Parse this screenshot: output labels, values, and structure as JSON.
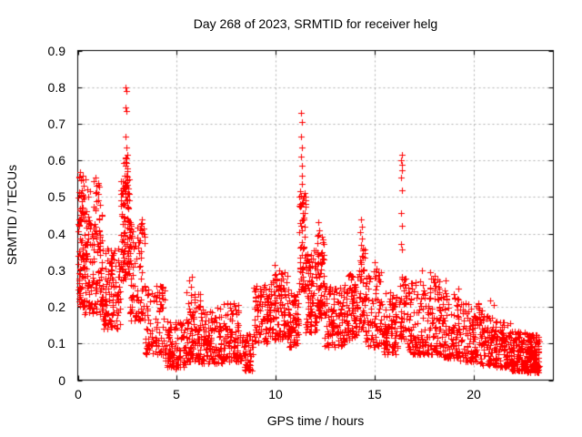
{
  "chart_data": {
    "type": "scatter",
    "title": "Day 268 of 2023, SRMTID for receiver helg",
    "xlabel": "GPS time / hours",
    "ylabel": "SRMTID / TECUs",
    "xlim": [
      0,
      24
    ],
    "ylim": [
      0,
      0.9
    ],
    "x_ticks": [
      0,
      5,
      10,
      15,
      20
    ],
    "x_tick_labels": [
      "0",
      "5",
      "10",
      "15",
      "20"
    ],
    "y_ticks": [
      0,
      0.1,
      0.2,
      0.3,
      0.4,
      0.5,
      0.6,
      0.7,
      0.8,
      0.9
    ],
    "y_tick_labels": [
      "0",
      "0.1",
      "0.2",
      "0.3",
      "0.4",
      "0.5",
      "0.6",
      "0.7",
      "0.8",
      "0.9"
    ],
    "grid": true,
    "legend": "none",
    "marker": {
      "shape": "plus",
      "color": "#ff0000",
      "size": 7
    },
    "grid_color": "#b0b0b0",
    "axis_color": "#000000",
    "background_color": "#ffffff",
    "series_name": "SRMTID",
    "seed": 268,
    "points": [
      [
        0.07,
        0.555
      ],
      [
        0.12,
        0.568
      ],
      [
        0.18,
        0.545
      ],
      [
        0.25,
        0.558
      ],
      [
        0.28,
        0.53
      ],
      [
        0.33,
        0.5
      ],
      [
        0.55,
        0.5
      ],
      [
        0.62,
        0.515
      ],
      [
        0.88,
        0.552
      ],
      [
        0.95,
        0.53
      ],
      [
        1.02,
        0.508
      ],
      [
        2.42,
        0.8
      ],
      [
        2.45,
        0.79
      ],
      [
        2.43,
        0.745
      ],
      [
        2.46,
        0.735
      ],
      [
        2.42,
        0.665
      ],
      [
        2.44,
        0.635
      ],
      [
        2.43,
        0.605
      ],
      [
        2.46,
        0.592
      ],
      [
        2.4,
        0.585
      ],
      [
        2.48,
        0.57
      ],
      [
        2.36,
        0.558
      ],
      [
        2.52,
        0.545
      ],
      [
        2.3,
        0.525
      ],
      [
        2.56,
        0.51
      ],
      [
        4.95,
        0.032
      ],
      [
        5.62,
        0.272
      ],
      [
        5.7,
        0.255
      ],
      [
        5.78,
        0.283
      ],
      [
        8.62,
        0.028
      ],
      [
        9.95,
        0.315
      ],
      [
        10.15,
        0.3
      ],
      [
        10.3,
        0.29
      ],
      [
        11.27,
        0.73
      ],
      [
        11.3,
        0.705
      ],
      [
        11.28,
        0.665
      ],
      [
        11.32,
        0.635
      ],
      [
        11.26,
        0.61
      ],
      [
        11.31,
        0.585
      ],
      [
        11.29,
        0.558
      ],
      [
        11.33,
        0.535
      ],
      [
        11.24,
        0.515
      ],
      [
        11.35,
        0.495
      ],
      [
        12.12,
        0.432
      ],
      [
        12.18,
        0.41
      ],
      [
        12.08,
        0.395
      ],
      [
        14.3,
        0.44
      ],
      [
        14.33,
        0.42
      ],
      [
        14.27,
        0.403
      ],
      [
        14.35,
        0.386
      ],
      [
        14.31,
        0.368
      ],
      [
        15.0,
        0.322
      ],
      [
        15.06,
        0.305
      ],
      [
        16.35,
        0.615
      ],
      [
        16.32,
        0.6
      ],
      [
        16.37,
        0.588
      ],
      [
        16.34,
        0.572
      ],
      [
        16.3,
        0.552
      ],
      [
        16.38,
        0.518
      ],
      [
        16.33,
        0.455
      ],
      [
        16.36,
        0.422
      ],
      [
        16.31,
        0.372
      ],
      [
        16.35,
        0.358
      ],
      [
        16.37,
        0.282
      ],
      [
        17.35,
        0.3
      ],
      [
        17.8,
        0.295
      ],
      [
        18.02,
        0.285
      ],
      [
        18.55,
        0.272
      ],
      [
        20.8,
        0.218
      ],
      [
        21.0,
        0.205
      ],
      [
        23.05,
        0.021
      ],
      [
        23.15,
        0.024
      ],
      [
        23.22,
        0.028
      ]
    ],
    "clusters_note": "dense scatter bands approximated as [x_start, x_end, count, y_min, y_max, bias_toward_min]",
    "clusters": [
      [
        0.0,
        0.35,
        70,
        0.2,
        0.52,
        1.4
      ],
      [
        0.05,
        0.6,
        20,
        0.42,
        0.575,
        1.0
      ],
      [
        0.35,
        1.25,
        130,
        0.18,
        0.46,
        1.3
      ],
      [
        0.8,
        1.15,
        12,
        0.46,
        0.555,
        1.0
      ],
      [
        1.25,
        2.15,
        120,
        0.14,
        0.36,
        1.3
      ],
      [
        2.15,
        2.62,
        90,
        0.27,
        0.56,
        1.1
      ],
      [
        2.3,
        2.55,
        14,
        0.5,
        0.62,
        1.0
      ],
      [
        2.62,
        3.4,
        95,
        0.16,
        0.44,
        1.4
      ],
      [
        3.4,
        4.4,
        95,
        0.07,
        0.26,
        1.5
      ],
      [
        4.4,
        5.45,
        115,
        0.035,
        0.16,
        1.4
      ],
      [
        5.45,
        6.2,
        95,
        0.05,
        0.24,
        1.6
      ],
      [
        6.2,
        7.3,
        115,
        0.045,
        0.2,
        1.5
      ],
      [
        7.3,
        8.3,
        105,
        0.05,
        0.22,
        1.5
      ],
      [
        8.3,
        8.85,
        50,
        0.025,
        0.13,
        1.3
      ],
      [
        8.85,
        9.65,
        85,
        0.1,
        0.26,
        1.2
      ],
      [
        9.65,
        10.65,
        120,
        0.11,
        0.295,
        1.2
      ],
      [
        10.65,
        11.15,
        65,
        0.09,
        0.24,
        1.3
      ],
      [
        11.18,
        11.5,
        60,
        0.24,
        0.52,
        1.2
      ],
      [
        11.5,
        12.05,
        85,
        0.13,
        0.36,
        1.4
      ],
      [
        12.05,
        12.45,
        60,
        0.17,
        0.41,
        1.3
      ],
      [
        12.45,
        13.6,
        120,
        0.09,
        0.27,
        1.4
      ],
      [
        13.6,
        14.15,
        75,
        0.11,
        0.29,
        1.3
      ],
      [
        14.18,
        14.5,
        45,
        0.14,
        0.36,
        1.2
      ],
      [
        14.5,
        15.35,
        85,
        0.09,
        0.3,
        1.5
      ],
      [
        15.35,
        16.15,
        85,
        0.07,
        0.24,
        1.4
      ],
      [
        16.2,
        16.6,
        45,
        0.11,
        0.28,
        1.2
      ],
      [
        16.6,
        17.6,
        95,
        0.07,
        0.27,
        1.5
      ],
      [
        17.6,
        18.45,
        95,
        0.07,
        0.28,
        1.5
      ],
      [
        18.45,
        19.25,
        95,
        0.06,
        0.25,
        1.5
      ],
      [
        19.25,
        20.25,
        95,
        0.05,
        0.22,
        1.5
      ],
      [
        20.25,
        21.05,
        95,
        0.04,
        0.2,
        1.5
      ],
      [
        21.05,
        21.85,
        95,
        0.035,
        0.16,
        1.4
      ],
      [
        21.85,
        22.65,
        115,
        0.025,
        0.135,
        1.3
      ],
      [
        22.65,
        23.3,
        135,
        0.02,
        0.125,
        1.3
      ]
    ]
  }
}
